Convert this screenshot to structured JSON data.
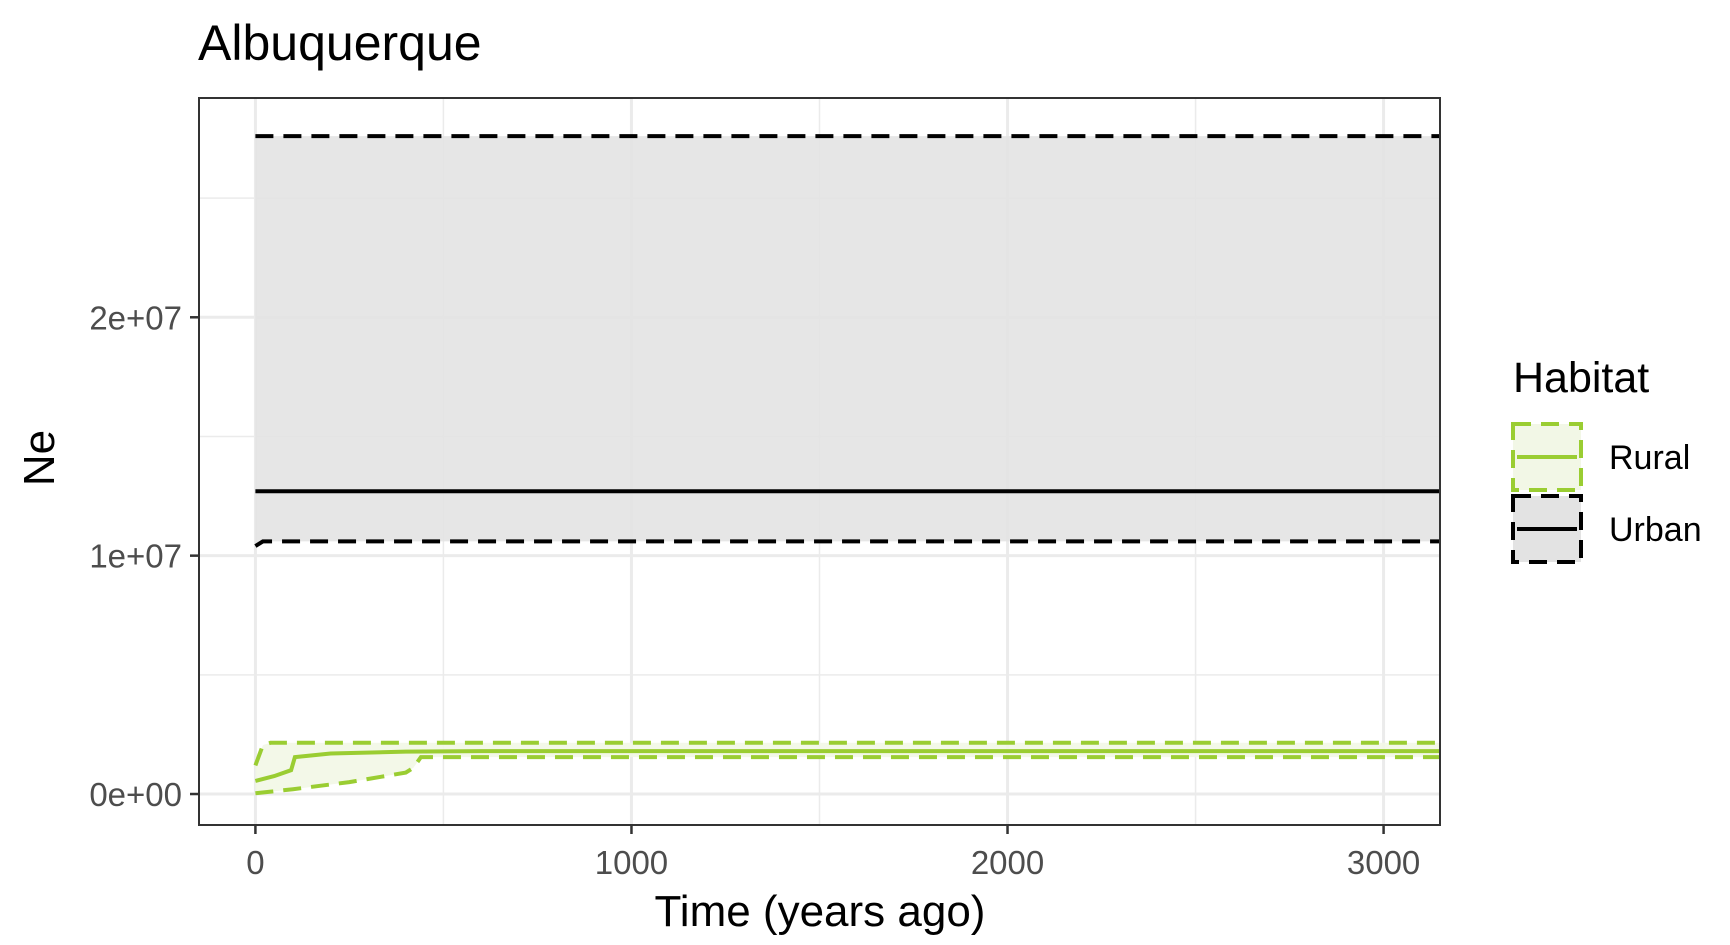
{
  "chart_data": {
    "type": "line",
    "title": "Albuquerque",
    "xlabel": "Time (years ago)",
    "ylabel": "Ne",
    "xlim": [
      -150,
      3150
    ],
    "ylim": [
      -1300000,
      29200000
    ],
    "x_ticks": [
      0,
      1000,
      2000,
      3000
    ],
    "x_minor_ticks": [
      500,
      1500,
      2500
    ],
    "x_tick_labels": [
      "0",
      "1000",
      "2000",
      "3000"
    ],
    "y_ticks": [
      0,
      10000000,
      20000000
    ],
    "y_minor_ticks": [
      5000000,
      15000000,
      25000000
    ],
    "y_tick_labels": [
      "0e+00",
      "1e+07",
      "2e+07"
    ],
    "grid": true,
    "legend": {
      "title": "Habitat",
      "position": "right",
      "entries": [
        "Rural",
        "Urban"
      ]
    },
    "series": [
      {
        "name": "Urban",
        "color": "#000000",
        "fill": "#e3e3e3",
        "median": {
          "x": [
            0,
            3150
          ],
          "y": [
            12700000,
            12700000
          ]
        },
        "lower": {
          "x": [
            0,
            20,
            3150
          ],
          "y": [
            10400000,
            10600000,
            10600000
          ]
        },
        "upper": {
          "x": [
            0,
            3150
          ],
          "y": [
            27600000,
            27600000
          ]
        }
      },
      {
        "name": "Rural",
        "color": "#9acd32",
        "fill": "#f2f7e6",
        "median": {
          "x": [
            0,
            50,
            95,
            105,
            200,
            400,
            600,
            3150
          ],
          "y": [
            550000,
            750000,
            1000000,
            1550000,
            1700000,
            1780000,
            1800000,
            1800000
          ]
        },
        "lower": {
          "x": [
            0,
            100,
            250,
            400,
            420,
            440,
            3150
          ],
          "y": [
            30000,
            200000,
            500000,
            900000,
            1100000,
            1550000,
            1550000
          ]
        },
        "upper": {
          "x": [
            0,
            20,
            40,
            3150
          ],
          "y": [
            1200000,
            2050000,
            2150000,
            2150000
          ]
        }
      }
    ]
  }
}
